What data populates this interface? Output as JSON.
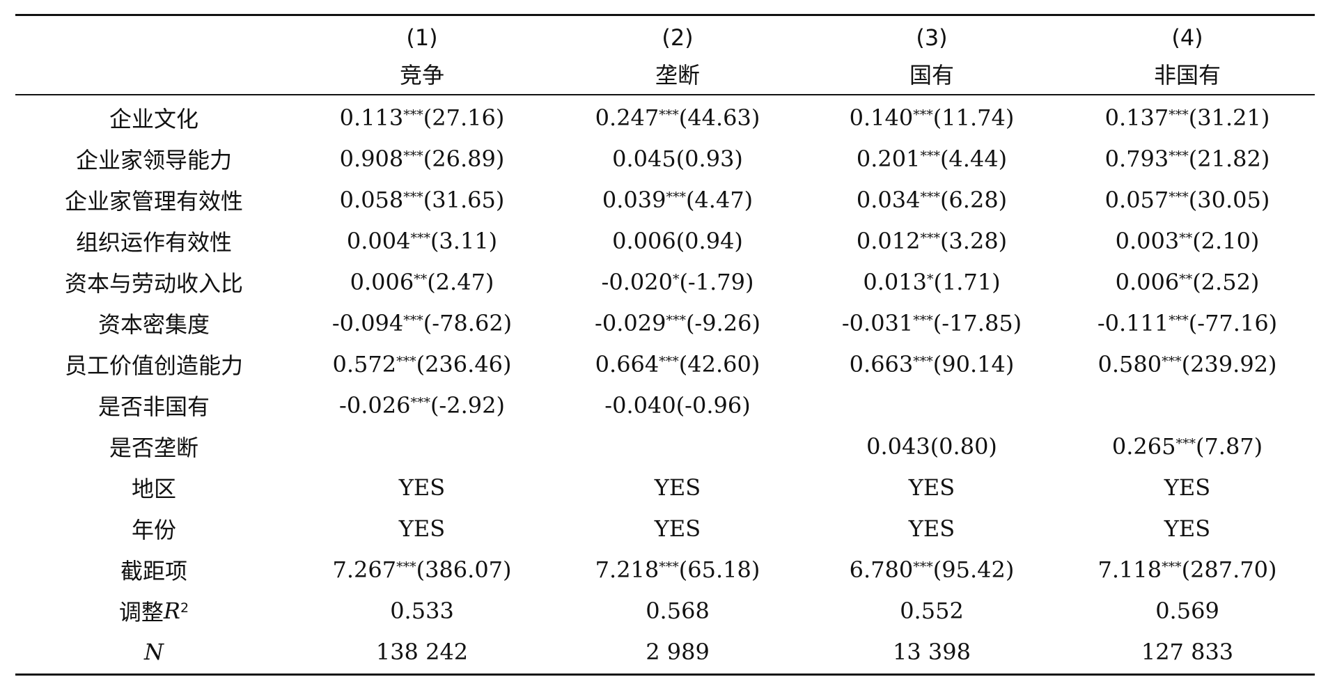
{
  "columns": {
    "numbers": [
      "(1)",
      "(2)",
      "(3)",
      "(4)"
    ],
    "names": [
      "竞争",
      "垄断",
      "国有",
      "非国有"
    ]
  },
  "rows": [
    {
      "label": "企业文化",
      "cells": [
        [
          "0.113",
          "***",
          "(27.16)"
        ],
        [
          "0.247",
          "***",
          "(44.63)"
        ],
        [
          "0.140",
          "***",
          "(11.74)"
        ],
        [
          "0.137",
          "***",
          "(31.21)"
        ]
      ]
    },
    {
      "label": "企业家领导能力",
      "cells": [
        [
          "0.908",
          "***",
          "(26.89)"
        ],
        [
          "0.045",
          "",
          "(0.93)"
        ],
        [
          "0.201",
          "***",
          "(4.44)"
        ],
        [
          "0.793",
          "***",
          "(21.82)"
        ]
      ]
    },
    {
      "label": "企业家管理有效性",
      "cells": [
        [
          "0.058",
          "***",
          "(31.65)"
        ],
        [
          "0.039",
          "***",
          "(4.47)"
        ],
        [
          "0.034",
          "***",
          "(6.28)"
        ],
        [
          "0.057",
          "***",
          "(30.05)"
        ]
      ]
    },
    {
      "label": "组织运作有效性",
      "cells": [
        [
          "0.004",
          "***",
          "(3.11)"
        ],
        [
          "0.006",
          "",
          "(0.94)"
        ],
        [
          "0.012",
          "***",
          "(3.28)"
        ],
        [
          "0.003",
          "**",
          "(2.10)"
        ]
      ]
    },
    {
      "label": "资本与劳动收入比",
      "cells": [
        [
          "0.006",
          "**",
          "(2.47)"
        ],
        [
          "-0.020",
          "*",
          "(-1.79)"
        ],
        [
          "0.013",
          "*",
          "(1.71)"
        ],
        [
          "0.006",
          "**",
          "(2.52)"
        ]
      ]
    },
    {
      "label": "资本密集度",
      "cells": [
        [
          "-0.094",
          "***",
          "(-78.62)"
        ],
        [
          "-0.029",
          "***",
          "(-9.26)"
        ],
        [
          "-0.031",
          "***",
          "(-17.85)"
        ],
        [
          "-0.111",
          "***",
          "(-77.16)"
        ]
      ]
    },
    {
      "label": "员工价值创造能力",
      "cells": [
        [
          "0.572",
          "***",
          "(236.46)"
        ],
        [
          "0.664",
          "***",
          "(42.60)"
        ],
        [
          "0.663",
          "***",
          "(90.14)"
        ],
        [
          "0.580",
          "***",
          "(239.92)"
        ]
      ]
    },
    {
      "label": "是否非国有",
      "cells": [
        [
          "-0.026",
          "***",
          "(-2.92)"
        ],
        [
          "-0.040",
          "",
          "(-0.96)"
        ],
        [
          "",
          "",
          ""
        ],
        [
          "",
          "",
          ""
        ]
      ]
    },
    {
      "label": "是否垄断",
      "cells": [
        [
          "",
          "",
          ""
        ],
        [
          "",
          "",
          ""
        ],
        [
          "0.043",
          "",
          "(0.80)"
        ],
        [
          "0.265",
          "***",
          "(7.87)"
        ]
      ]
    },
    {
      "label": "地区",
      "cells": [
        [
          "YES",
          "",
          ""
        ],
        [
          "YES",
          "",
          ""
        ],
        [
          "YES",
          "",
          ""
        ],
        [
          "YES",
          "",
          ""
        ]
      ]
    },
    {
      "label": "年份",
      "cells": [
        [
          "YES",
          "",
          ""
        ],
        [
          "YES",
          "",
          ""
        ],
        [
          "YES",
          "",
          ""
        ],
        [
          "YES",
          "",
          ""
        ]
      ]
    },
    {
      "label": "截距项",
      "cells": [
        [
          "7.267",
          "***",
          "(386.07)"
        ],
        [
          "7.218",
          "***",
          "(65.18)"
        ],
        [
          "6.780",
          "***",
          "(95.42)"
        ],
        [
          "7.118",
          "***",
          "(287.70)"
        ]
      ]
    }
  ],
  "r2_row": {
    "label_prefix": "调整 ",
    "label_var": "R",
    "label_sup": "2",
    "values": [
      "0.533",
      "0.568",
      "0.552",
      "0.569"
    ]
  },
  "n_row": {
    "label": "N",
    "values": [
      "138 242",
      "2 989",
      "13 398",
      "127 833"
    ]
  }
}
